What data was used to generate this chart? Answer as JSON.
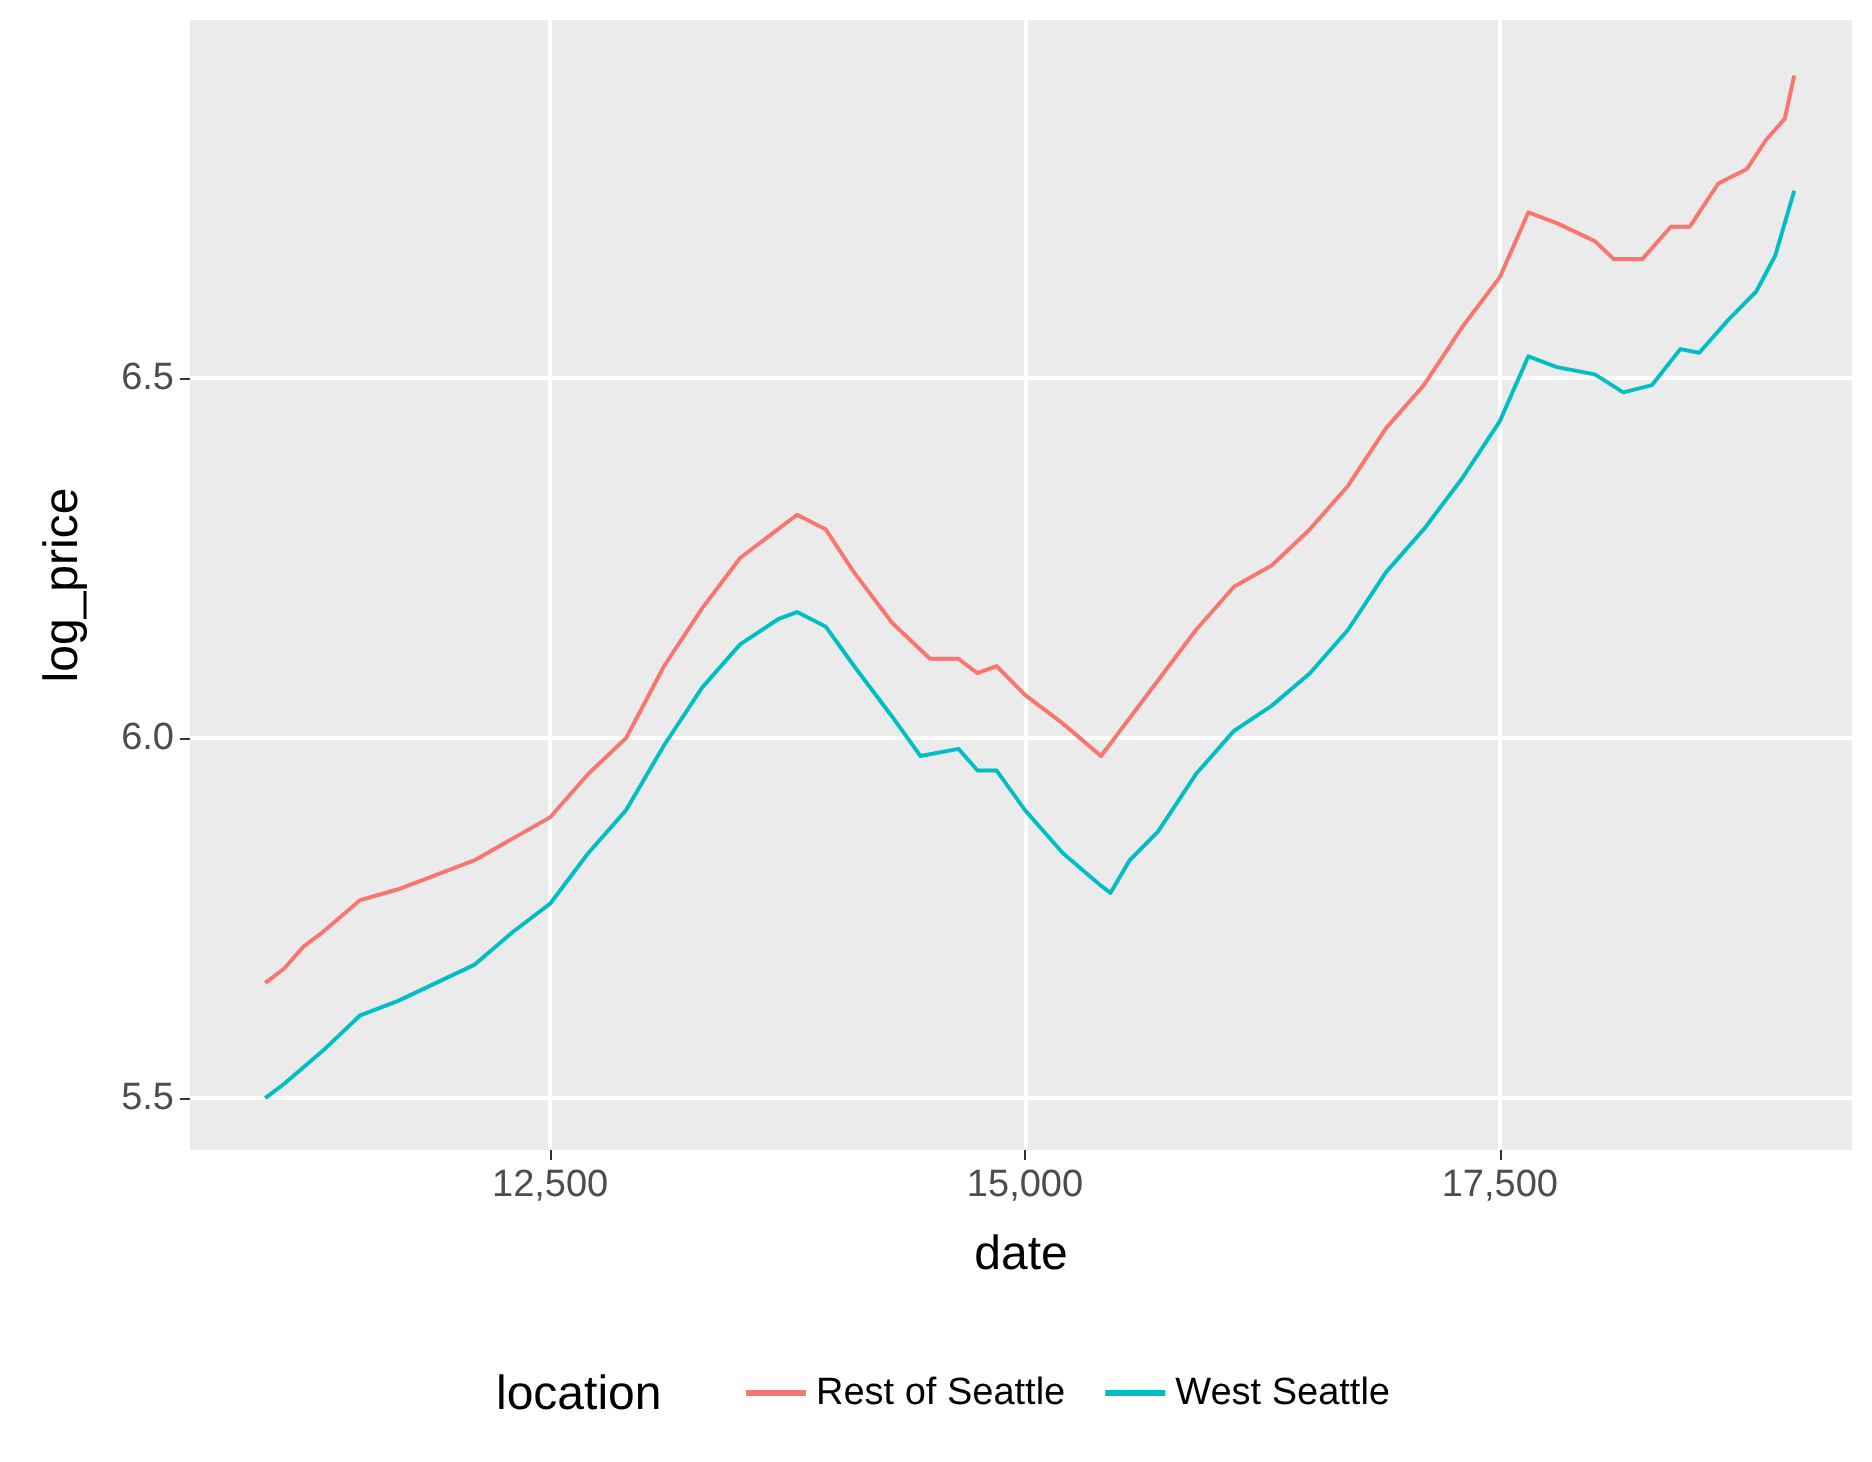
{
  "chart_data": {
    "type": "line",
    "xlabel": "date",
    "ylabel": "log_price",
    "legend_title": "location",
    "legend": "bottom",
    "grid": true,
    "xlim": [
      10604,
      19354
    ],
    "ylim": [
      5.428,
      6.997
    ],
    "xticks": [
      {
        "value": 12500,
        "label": "12,500"
      },
      {
        "value": 15000,
        "label": "15,000"
      },
      {
        "value": 17500,
        "label": "17,500"
      }
    ],
    "yticks": [
      5.5,
      {
        "value": 6,
        "label": "6.0"
      },
      6.5
    ],
    "series": [
      {
        "name": "Rest of Seattle",
        "color": "#f8766d",
        "x": [
          11000,
          11100,
          11200,
          11300,
          11500,
          11700,
          11900,
          12100,
          12300,
          12500,
          12700,
          12900,
          13100,
          13300,
          13500,
          13700,
          13800,
          13950,
          14100,
          14300,
          14500,
          14650,
          14750,
          14850,
          15000,
          15200,
          15400,
          15500,
          15700,
          15900,
          16100,
          16300,
          16500,
          16700,
          16900,
          17100,
          17300,
          17500,
          17650,
          17800,
          18000,
          18100,
          18250,
          18400,
          18500,
          18650,
          18800,
          18900,
          19000,
          19050
        ],
        "values": [
          5.66,
          5.68,
          5.71,
          5.73,
          5.775,
          5.79,
          5.81,
          5.83,
          5.86,
          5.89,
          5.95,
          6.0,
          6.1,
          6.18,
          6.25,
          6.29,
          6.31,
          6.29,
          6.23,
          6.16,
          6.11,
          6.11,
          6.09,
          6.1,
          6.06,
          6.02,
          5.975,
          6.01,
          6.08,
          6.15,
          6.21,
          6.24,
          6.29,
          6.35,
          6.43,
          6.49,
          6.57,
          6.64,
          6.73,
          6.715,
          6.69,
          6.665,
          6.665,
          6.71,
          6.71,
          6.77,
          6.79,
          6.83,
          6.86,
          6.92
        ]
      },
      {
        "name": "West Seattle",
        "color": "#00bfc4",
        "x": [
          11000,
          11100,
          11300,
          11500,
          11700,
          11900,
          12100,
          12300,
          12500,
          12700,
          12900,
          13100,
          13300,
          13500,
          13700,
          13800,
          13950,
          14100,
          14300,
          14450,
          14650,
          14750,
          14850,
          15000,
          15200,
          15400,
          15450,
          15550,
          15700,
          15900,
          16100,
          16300,
          16500,
          16700,
          16900,
          17100,
          17300,
          17500,
          17650,
          17800,
          18000,
          18150,
          18300,
          18450,
          18550,
          18700,
          18850,
          18950,
          19050
        ],
        "values": [
          5.5,
          5.52,
          5.565,
          5.615,
          5.635,
          5.66,
          5.685,
          5.73,
          5.77,
          5.84,
          5.9,
          5.99,
          6.07,
          6.13,
          6.165,
          6.175,
          6.155,
          6.1,
          6.03,
          5.975,
          5.985,
          5.955,
          5.955,
          5.9,
          5.84,
          5.795,
          5.785,
          5.83,
          5.87,
          5.95,
          6.01,
          6.045,
          6.09,
          6.15,
          6.23,
          6.29,
          6.36,
          6.44,
          6.53,
          6.515,
          6.505,
          6.48,
          6.49,
          6.54,
          6.535,
          6.58,
          6.62,
          6.67,
          6.76
        ]
      }
    ]
  }
}
